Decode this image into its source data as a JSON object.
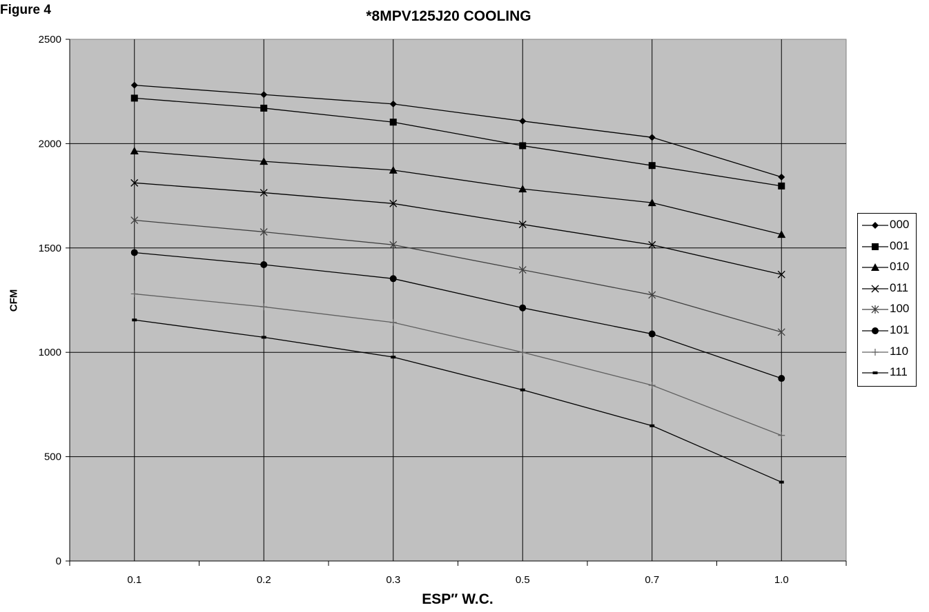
{
  "figure_label": "Figure 4",
  "chart_data": {
    "type": "line",
    "title": "*8MPV125J20  COOLING",
    "xlabel": "ESP″ W.C.",
    "ylabel": "CFM",
    "categories": [
      "0.1",
      "0.2",
      "0.3",
      "0.5",
      "0.7",
      "1.0"
    ],
    "ylim": [
      0,
      2500
    ],
    "yticks": [
      "0",
      "500",
      "1000",
      "1500",
      "2000",
      "2500"
    ],
    "grid": true,
    "legend_position": "right",
    "plot_background": "#c0c0c0",
    "series": [
      {
        "name": "000",
        "marker": "diamond",
        "color": "#000000",
        "values": [
          2280,
          2235,
          2190,
          2108,
          2030,
          1840
        ]
      },
      {
        "name": "001",
        "marker": "square",
        "color": "#000000",
        "values": [
          2218,
          2170,
          2103,
          1990,
          1895,
          1797
        ]
      },
      {
        "name": "010",
        "marker": "triangle",
        "color": "#000000",
        "values": [
          1965,
          1915,
          1873,
          1783,
          1717,
          1565
        ]
      },
      {
        "name": "011",
        "marker": "x",
        "color": "#000000",
        "values": [
          1812,
          1765,
          1713,
          1613,
          1515,
          1373
        ]
      },
      {
        "name": "100",
        "marker": "star",
        "color": "#404040",
        "values": [
          1633,
          1577,
          1515,
          1395,
          1275,
          1097
        ]
      },
      {
        "name": "101",
        "marker": "circle",
        "color": "#000000",
        "values": [
          1478,
          1420,
          1353,
          1213,
          1088,
          875
        ]
      },
      {
        "name": "110",
        "marker": "plus",
        "color": "#606060",
        "values": [
          1280,
          1218,
          1143,
          1000,
          842,
          602
        ]
      },
      {
        "name": "111",
        "marker": "dash",
        "color": "#000000",
        "values": [
          1155,
          1072,
          977,
          820,
          648,
          378
        ]
      }
    ]
  }
}
